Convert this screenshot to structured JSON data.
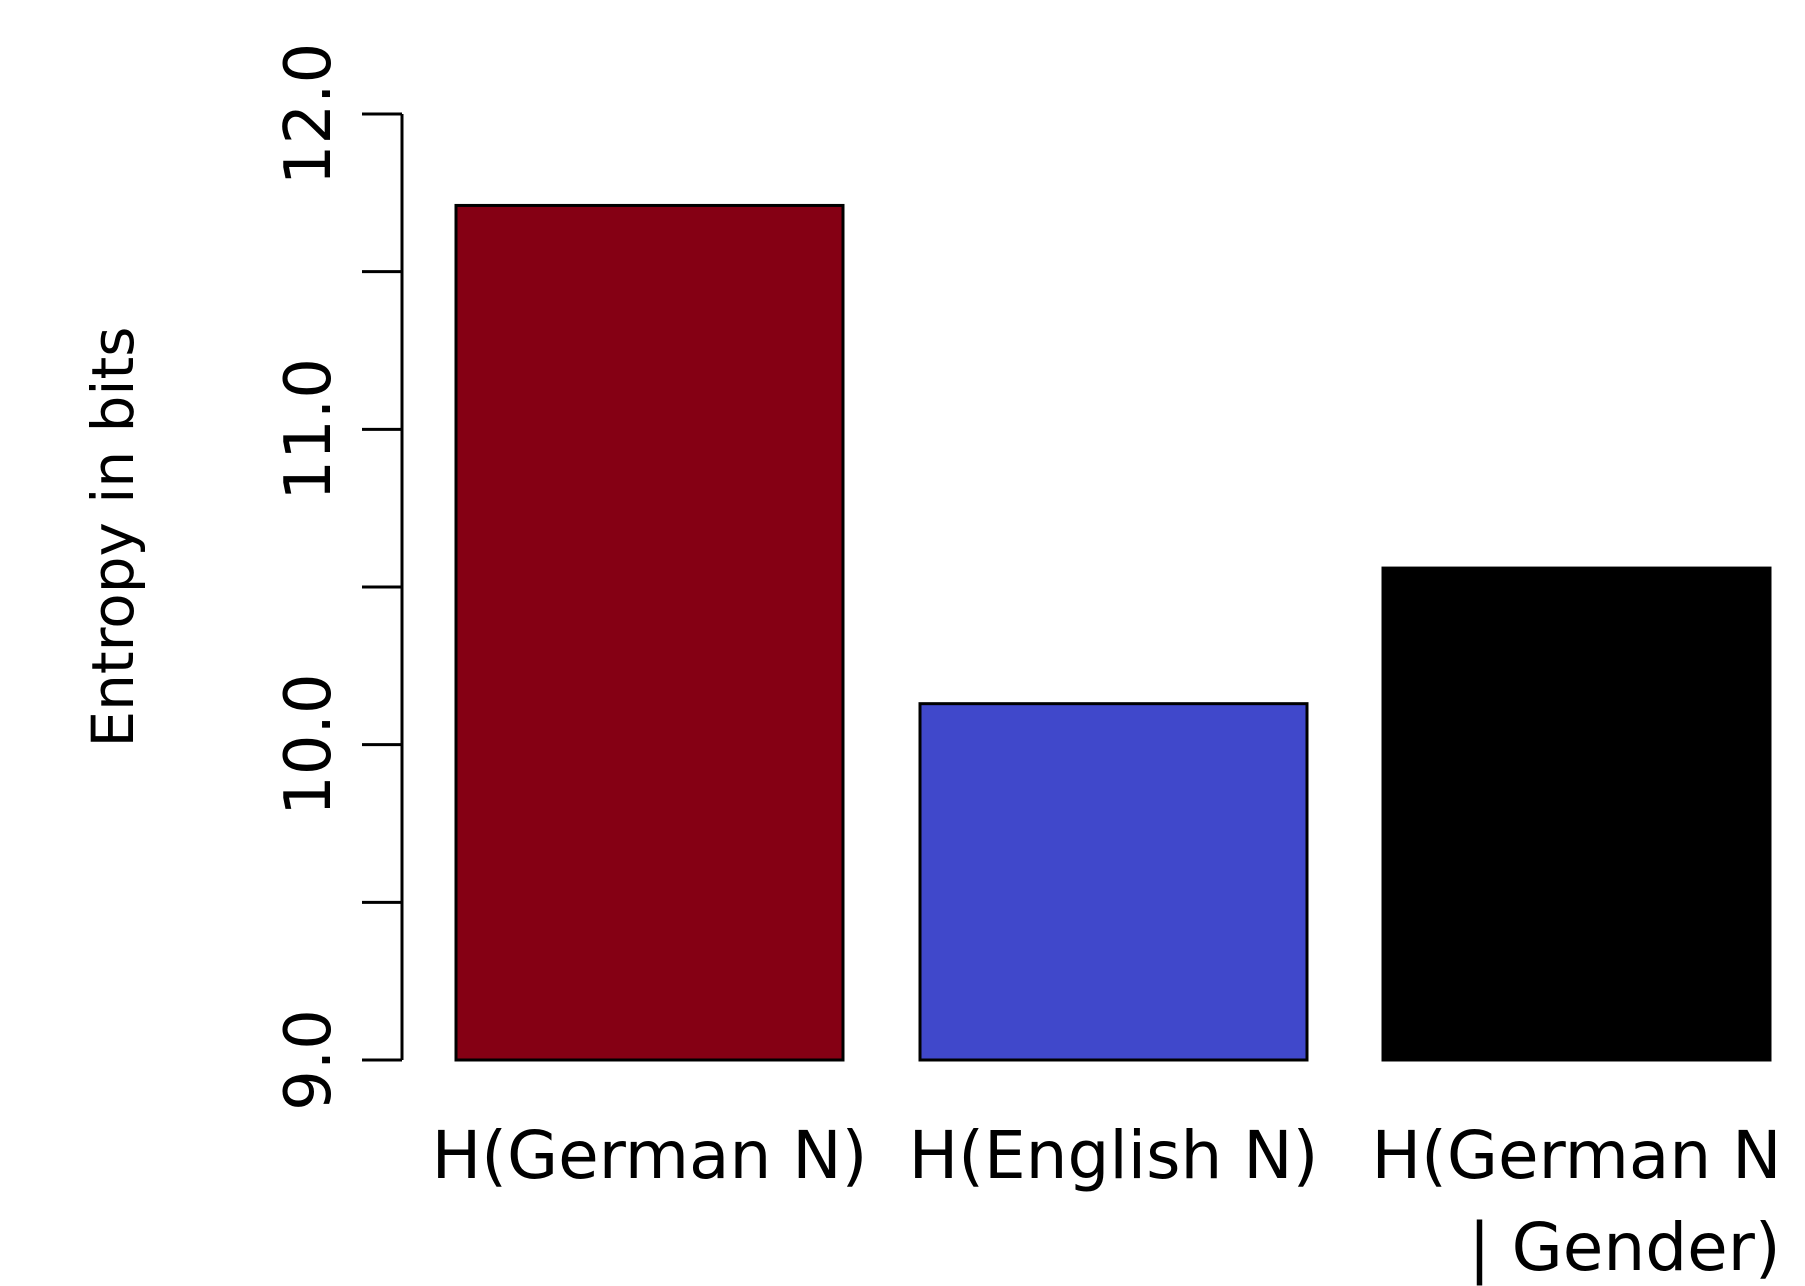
{
  "chart_data": {
    "type": "bar",
    "title": "",
    "xlabel": "",
    "ylabel": "Entropy in bits",
    "ylim": [
      9.0,
      12.0
    ],
    "yticks": [
      9.0,
      9.5,
      10.0,
      10.5,
      11.0,
      11.5,
      12.0
    ],
    "ytick_labels": [
      "9.0",
      "",
      "10.0",
      "",
      "11.0",
      "",
      "12.0"
    ],
    "grid": false,
    "categories": [
      {
        "lines": [
          "H(German N)"
        ]
      },
      {
        "lines": [
          "H(English N)"
        ]
      },
      {
        "lines": [
          "H(German N",
          "| Gender)"
        ]
      }
    ],
    "values": [
      11.71,
      10.13,
      10.56
    ],
    "colors": [
      "#850014",
      "#4048CB",
      "#000000"
    ]
  }
}
